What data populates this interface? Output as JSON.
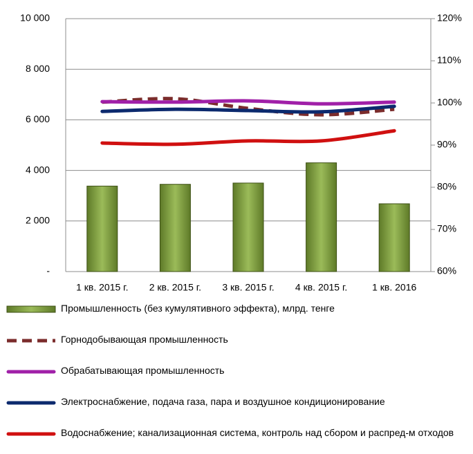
{
  "chart_data": {
    "type": "bar",
    "categories": [
      "1 кв. 2015 г.",
      "2 кв. 2015 г.",
      "3 кв. 2015 г.",
      "4 кв. 2015 г.",
      "1 кв. 2016"
    ],
    "series": [
      {
        "name": "Промышленность (без кумулятивного эффекта), млрд. тенге",
        "type": "bar",
        "color": "#77933c",
        "values": [
          3380,
          3450,
          3500,
          4300,
          2680
        ]
      },
      {
        "name": "Горнодобывающая промышленность",
        "type": "line",
        "axis": "y2",
        "dashed": true,
        "color": "#7b2c2c",
        "values": [
          100.2,
          101.0,
          98.7,
          97.2,
          98.5
        ]
      },
      {
        "name": "Обрабатывающая промышленность",
        "type": "line",
        "axis": "y2",
        "color": "#a020a8",
        "values": [
          100.3,
          100.2,
          100.5,
          99.8,
          100.2
        ]
      },
      {
        "name": "Электроснабжение, подача газа, пара и воздушное кондиционирование",
        "type": "line",
        "axis": "y2",
        "color": "#0c2a6e",
        "values": [
          98.0,
          98.5,
          98.2,
          97.9,
          99.2
        ]
      },
      {
        "name": "Водоснабжение; канализационная система, контроль над сбором и распред-м отходов",
        "type": "line",
        "axis": "y2",
        "color": "#d01010",
        "values": [
          90.5,
          90.2,
          91.0,
          91.0,
          93.4
        ]
      }
    ],
    "ylim": [
      0,
      10000
    ],
    "yticks": [
      {
        "value": 0,
        "label": "-"
      },
      {
        "value": 2000,
        "label": "2 000"
      },
      {
        "value": 4000,
        "label": "4 000"
      },
      {
        "value": 6000,
        "label": "6 000"
      },
      {
        "value": 8000,
        "label": "8 000"
      },
      {
        "value": 10000,
        "label": "10 000"
      }
    ],
    "y2lim": [
      60,
      120
    ],
    "y2ticks": [
      {
        "value": 60,
        "label": "60%"
      },
      {
        "value": 70,
        "label": "70%"
      },
      {
        "value": 80,
        "label": "80%"
      },
      {
        "value": 90,
        "label": "90%"
      },
      {
        "value": 100,
        "label": "100%"
      },
      {
        "value": 110,
        "label": "110%"
      },
      {
        "value": 120,
        "label": "120%"
      }
    ],
    "grid": true
  }
}
